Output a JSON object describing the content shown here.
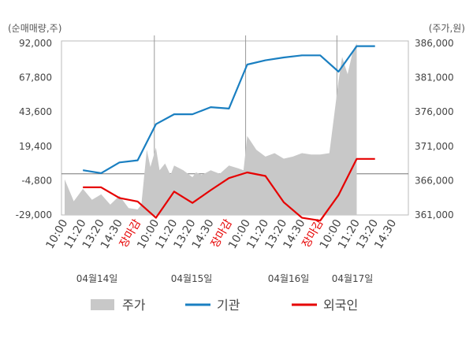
{
  "chart_data": {
    "type": "line",
    "left_axis_unit": "(순매매량,주)",
    "right_axis_unit": "(주가,원)",
    "left_ticks": [
      "92,000",
      "67,800",
      "43,600",
      "19,400",
      "-4,800",
      "-29,000"
    ],
    "right_ticks": [
      "386,000",
      "381,000",
      "376,000",
      "371,000",
      "366,000",
      "361,000"
    ],
    "left_range": [
      -29000,
      92000
    ],
    "right_range": [
      361000,
      386000
    ],
    "x_ticks": [
      "10:00",
      "11:20",
      "13:20",
      "14:30",
      "장마감",
      "10:00",
      "11:20",
      "13:20",
      "14:30",
      "장마감",
      "10:00",
      "11:20",
      "13:20",
      "14:30",
      "장마감",
      "10:00",
      "11:20",
      "13:20",
      "14:30"
    ],
    "close_label": "장마감",
    "dates": [
      "04월14일",
      "04월15일",
      "04월16일",
      "04월17일"
    ],
    "legend": [
      {
        "name": "주가",
        "color": "#c8c8c8"
      },
      {
        "name": "기관",
        "color": "#1a7fc1"
      },
      {
        "name": "외국인",
        "color": "#e60000"
      }
    ],
    "series": [
      {
        "name": "기관",
        "color": "#1a7fc1",
        "x": [
          1,
          2,
          3,
          4,
          5,
          6,
          7,
          8,
          9,
          10,
          11,
          12,
          13,
          14,
          15,
          16,
          17
        ],
        "values": [
          2500,
          500,
          8000,
          9500,
          35000,
          42000,
          42000,
          47000,
          46000,
          77000,
          80000,
          82000,
          83500,
          83500,
          72000,
          90000,
          90000
        ]
      },
      {
        "name": "외국인",
        "color": "#e60000",
        "x": [
          1,
          2,
          3,
          4,
          5,
          6,
          7,
          8,
          9,
          10,
          11,
          12,
          13,
          14,
          15,
          16,
          17
        ],
        "values": [
          -9500,
          -9500,
          -17000,
          -19500,
          -31000,
          -12500,
          -20500,
          -11500,
          -3000,
          1000,
          -1500,
          -20000,
          -31000,
          -33000,
          -15000,
          10500,
          10500
        ]
      },
      {
        "name": "주가",
        "color": "#c8c8c8",
        "x": [
          0,
          0.5,
          1,
          1.5,
          2,
          2.5,
          3,
          3.5,
          4,
          4.2,
          4.5,
          4.7,
          5,
          5.2,
          5.5,
          5.8,
          6,
          6.5,
          7,
          7.2,
          7.5,
          8,
          8.5,
          9,
          9.5,
          9.8,
          10,
          10.5,
          11,
          11.5,
          12,
          12.5,
          13,
          13.5,
          14,
          14.5,
          15,
          15.2,
          15.5,
          15.8,
          16
        ],
        "values": [
          366200,
          363000,
          364800,
          363200,
          364000,
          362500,
          363800,
          362000,
          361800,
          362500,
          370500,
          368000,
          370800,
          367500,
          368500,
          366800,
          368200,
          367500,
          366500,
          367200,
          366800,
          367500,
          367000,
          368200,
          367800,
          367500,
          372500,
          370500,
          369500,
          370000,
          369200,
          369500,
          370000,
          369800,
          369800,
          370000,
          380500,
          384000,
          381500,
          385000,
          386000
        ]
      }
    ]
  }
}
